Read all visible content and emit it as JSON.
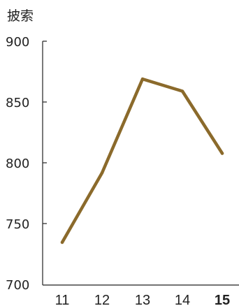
{
  "chart_data": {
    "type": "line",
    "ylabel": "披索",
    "categories": [
      "11",
      "12",
      "13",
      "14",
      "15"
    ],
    "highlight_category": "15",
    "values": [
      735,
      792,
      869,
      859,
      808
    ],
    "ylim": [
      700,
      900
    ],
    "yticks": [
      "900",
      "850",
      "800",
      "750",
      "700"
    ],
    "line_color": "#8b6a2b",
    "grid": false
  }
}
